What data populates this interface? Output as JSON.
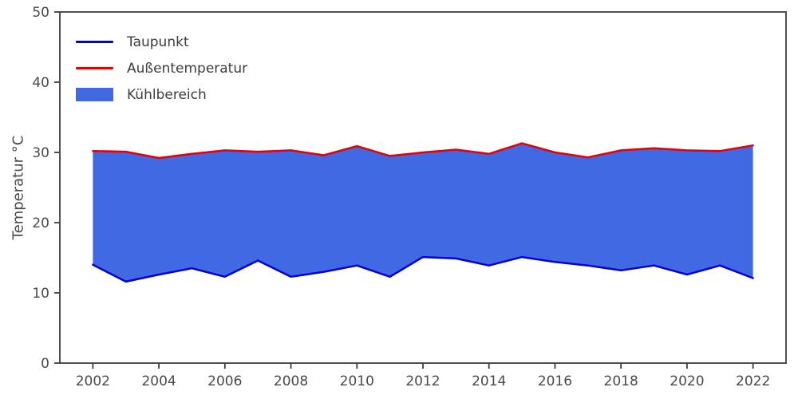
{
  "chart": {
    "ylabel": "Temperatur °C",
    "legend": [
      {
        "label": "Taupunkt",
        "swatch": "line",
        "color": "#0000e0"
      },
      {
        "label": "Außentemperatur",
        "swatch": "line",
        "color": "#e60000"
      },
      {
        "label": "Kühlbereich",
        "swatch": "patch",
        "color": "#4169e1"
      }
    ]
  },
  "chart_data": {
    "type": "area",
    "title": "",
    "xlabel": "",
    "ylabel": "Temperatur °C",
    "x": [
      2002,
      2003,
      2004,
      2005,
      2006,
      2007,
      2008,
      2009,
      2010,
      2011,
      2012,
      2013,
      2014,
      2015,
      2016,
      2017,
      2018,
      2019,
      2020,
      2021,
      2022
    ],
    "series": [
      {
        "name": "Taupunkt",
        "color": "#0000e0",
        "values": [
          14.0,
          11.6,
          12.6,
          13.5,
          12.3,
          14.6,
          12.3,
          13.0,
          13.9,
          12.3,
          15.1,
          14.9,
          13.9,
          15.1,
          14.4,
          13.9,
          13.2,
          13.9,
          12.6,
          13.9,
          12.1
        ]
      },
      {
        "name": "Außentemperatur",
        "color": "#e60000",
        "values": [
          30.2,
          30.1,
          29.2,
          29.8,
          30.3,
          30.1,
          30.3,
          29.6,
          30.9,
          29.5,
          30.0,
          30.4,
          29.8,
          31.3,
          30.0,
          29.3,
          30.3,
          30.6,
          30.3,
          30.2,
          31.0
        ]
      }
    ],
    "fill_between": {
      "name": "Kühlbereich",
      "color": "#4169e1",
      "upper": "Außentemperatur",
      "lower": "Taupunkt"
    },
    "ylim": [
      0,
      50
    ],
    "xlim": [
      2001,
      2023
    ],
    "yticks": [
      0,
      10,
      20,
      30,
      40,
      50
    ],
    "xticks": [
      2002,
      2004,
      2006,
      2008,
      2010,
      2012,
      2014,
      2016,
      2018,
      2020,
      2022
    ],
    "legend_position": "upper left",
    "grid": false
  }
}
